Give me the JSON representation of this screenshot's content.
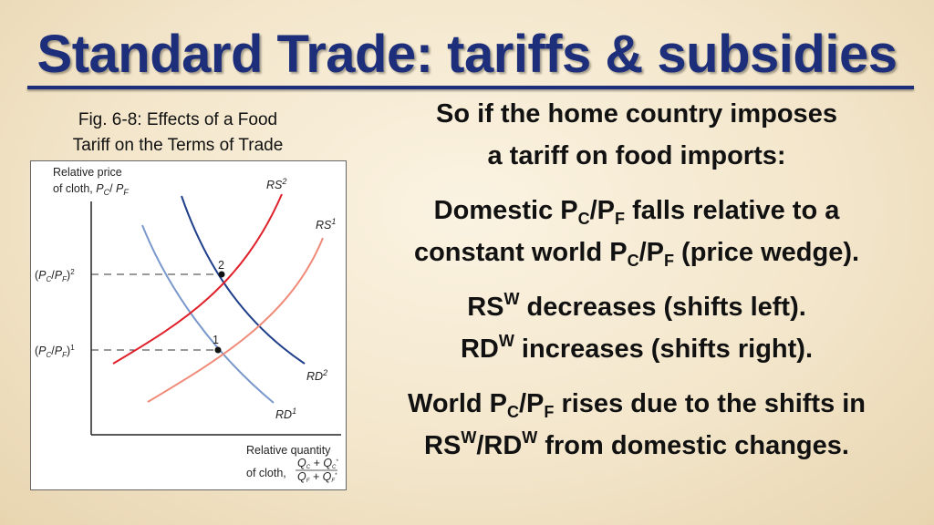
{
  "slide": {
    "title": "Standard Trade: tariffs & subsidies",
    "caption_line1": "Fig. 6-8: Effects of a Food",
    "caption_line2": "Tariff on the Terms of Trade"
  },
  "figure": {
    "y_axis_label_line1": "Relative price",
    "y_axis_label_line2": "of cloth, ",
    "y_axis_symbol": "P",
    "x_axis_label_line1": "Relative quantity",
    "x_axis_label_line2": "of cloth,",
    "curves": {
      "rs2": {
        "label": "RS",
        "sup": "2",
        "color": "#e0202a"
      },
      "rs1": {
        "label": "RS",
        "sup": "1",
        "color": "#f08a78"
      },
      "rd2": {
        "label": "RD",
        "sup": "2",
        "color": "#1f3f8a"
      },
      "rd1": {
        "label": "RD",
        "sup": "1",
        "color": "#7a98cc"
      }
    },
    "equilibria": {
      "point2": {
        "label": "2",
        "price_label": "(P",
        "price_sup": "2"
      },
      "point1": {
        "label": "1",
        "price_label": "(P",
        "price_sup": "1"
      }
    }
  },
  "bullets": {
    "b1_line1": "So if the home country imposes",
    "b1_line2": "a tariff on food imports:",
    "b2_part1": "Domestic P",
    "b2_sub1": "C",
    "b2_part2": "/P",
    "b2_sub2": "F",
    "b2_part3": " falls relative to a",
    "b2_part4": "constant world P",
    "b2_sub3": "C",
    "b2_part5": "/P",
    "b2_sub4": "F",
    "b2_part6": " (price wedge).",
    "b3_part1": "RS",
    "b3_sup1": "W",
    "b3_part2": " decreases (shifts left).",
    "b3_part3": "RD",
    "b3_sup2": "W",
    "b3_part4": " increases (shifts right).",
    "b4_part1": "World P",
    "b4_sub1": "C",
    "b4_part2": "/P",
    "b4_sub2": "F",
    "b4_part3": " rises due to the shifts in",
    "b4_part4": "RS",
    "b4_sup1": "W",
    "b4_part5": "/RD",
    "b4_sup2": "W",
    "b4_part6": " from domestic changes."
  }
}
